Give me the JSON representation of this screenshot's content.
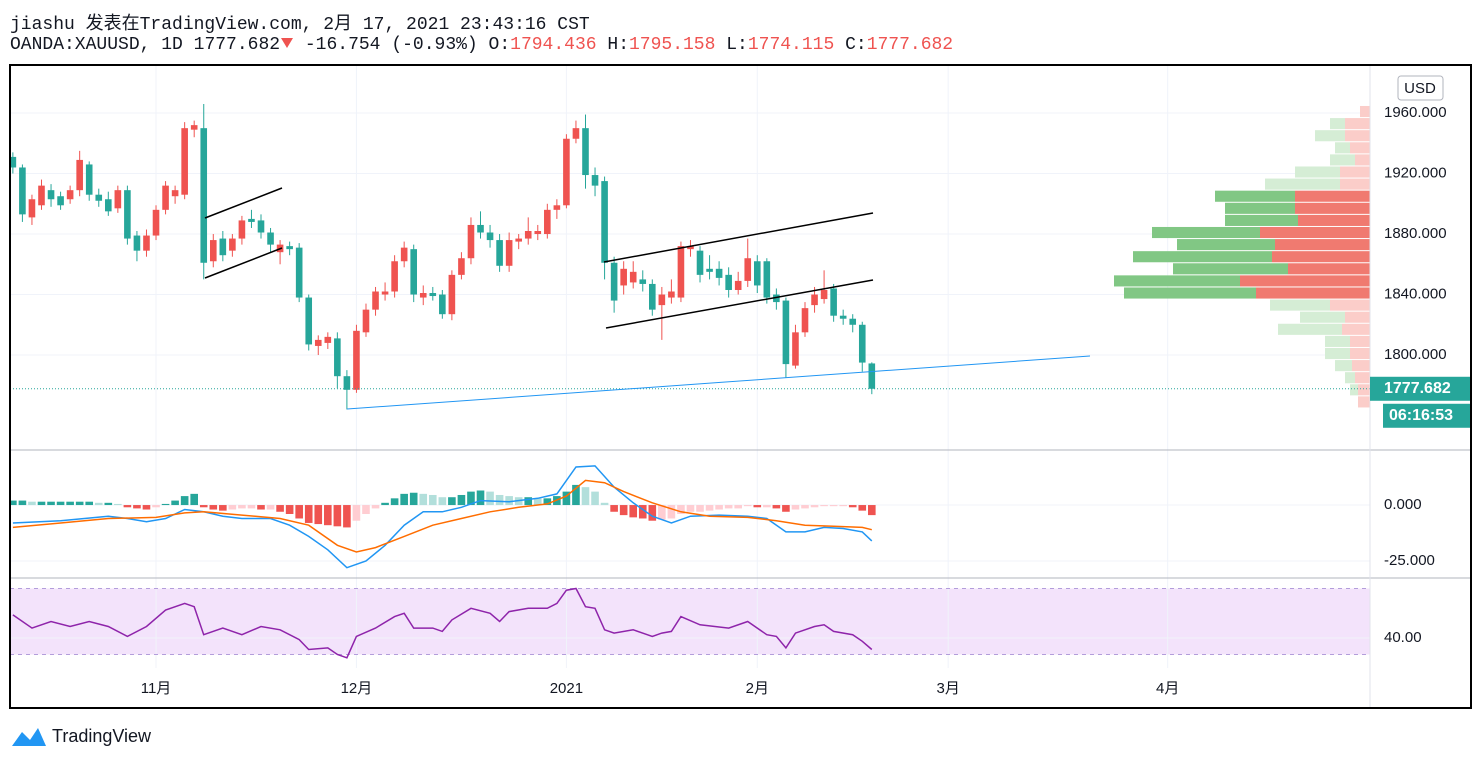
{
  "header": {
    "byline": "jiashu 发表在TradingView.com, 2月 17, 2021 23:43:16 CST",
    "symbol": "OANDA:XAUUSD, 1D",
    "change": "-16.754",
    "change_pct": "(-0.93%)",
    "o_label": "O:",
    "h_label": "H:",
    "l_label": "L:",
    "c_label": "C:"
  },
  "footer": {
    "brand": "TradingView"
  },
  "chart_data": {
    "type": "candlestick",
    "currency": "USD",
    "countdown": "06:16:53",
    "up_color": "#ef5350",
    "down_color": "#26a69a",
    "grid": true,
    "xlim": [
      -0.3,
      142.2
    ],
    "xticks": [
      {
        "value": 15,
        "label": "11月"
      },
      {
        "value": 36,
        "label": "12月"
      },
      {
        "value": 58,
        "label": "2021"
      },
      {
        "value": 78,
        "label": "2月"
      },
      {
        "value": 98,
        "label": "3月"
      },
      {
        "value": 121,
        "label": "4月"
      }
    ],
    "ylim": [
      1737.2,
      1991.1
    ],
    "yticks": [
      {
        "value": 1800,
        "label": "1800.000"
      },
      {
        "value": 1840,
        "label": "1840.000"
      },
      {
        "value": 1880,
        "label": "1880.000"
      },
      {
        "value": 1920,
        "label": "1920.000"
      },
      {
        "value": 1960,
        "label": "1960.000"
      }
    ],
    "open": [
      1931,
      1924,
      1891,
      1899,
      1909,
      1905,
      1903,
      1909,
      1926,
      1906,
      1903,
      1897,
      1909,
      1879,
      1869,
      1879,
      1896,
      1905,
      1906,
      1949,
      1950,
      1862,
      1877,
      1869,
      1877,
      1890,
      1889,
      1881,
      1868,
      1872,
      1871,
      1838,
      1806,
      1808,
      1811,
      1786,
      1777,
      1815,
      1830,
      1840,
      1842,
      1862,
      1870,
      1838,
      1841,
      1840,
      1827,
      1853,
      1864,
      1886,
      1881,
      1876,
      1859,
      1875,
      1877,
      1880,
      1880,
      1896,
      1899,
      1943,
      1950,
      1919,
      1915,
      1861,
      1846,
      1848,
      1850,
      1847,
      1833,
      1838,
      1838,
      1870,
      1869,
      1857,
      1857,
      1853,
      1843,
      1849,
      1862,
      1862,
      1840,
      1836,
      1793,
      1815,
      1833,
      1837,
      1844,
      1826,
      1824,
      1820,
      1794.436
    ],
    "high": [
      1934,
      1926,
      1906,
      1916,
      1913,
      1908,
      1912,
      1935,
      1928,
      1910,
      1908,
      1912,
      1912,
      1882,
      1883,
      1899,
      1915,
      1912,
      1954,
      1955,
      1966,
      1880,
      1882,
      1880,
      1892,
      1896,
      1893,
      1884,
      1876,
      1875,
      1874,
      1840,
      1813,
      1815,
      1815,
      1790,
      1820,
      1834,
      1845,
      1848,
      1866,
      1875,
      1873,
      1846,
      1845,
      1843,
      1856,
      1868,
      1891,
      1895,
      1886,
      1880,
      1881,
      1880,
      1891,
      1886,
      1900,
      1903,
      1946,
      1955,
      1959,
      1924,
      1918,
      1865,
      1862,
      1862,
      1856,
      1850,
      1845,
      1850,
      1875,
      1876,
      1872,
      1866,
      1862,
      1858,
      1855,
      1877,
      1866,
      1864,
      1844,
      1838,
      1820,
      1835,
      1845,
      1856,
      1847,
      1830,
      1827,
      1822,
      1795.158
    ],
    "low": [
      1920,
      1888,
      1886,
      1896,
      1898,
      1896,
      1900,
      1905,
      1902,
      1898,
      1892,
      1894,
      1873,
      1862,
      1865,
      1876,
      1893,
      1900,
      1903,
      1944,
      1850,
      1858,
      1862,
      1865,
      1873,
      1884,
      1877,
      1868,
      1860,
      1866,
      1835,
      1803,
      1800,
      1804,
      1778,
      1764,
      1775,
      1812,
      1826,
      1836,
      1838,
      1858,
      1835,
      1833,
      1836,
      1824,
      1823,
      1850,
      1860,
      1877,
      1871,
      1855,
      1855,
      1870,
      1873,
      1876,
      1877,
      1890,
      1897,
      1940,
      1910,
      1905,
      1850,
      1828,
      1840,
      1844,
      1842,
      1826,
      1810,
      1834,
      1835,
      1865,
      1848,
      1850,
      1846,
      1838,
      1840,
      1845,
      1841,
      1834,
      1830,
      1785,
      1791,
      1812,
      1828,
      1834,
      1822,
      1820,
      1815,
      1789,
      1774.115
    ],
    "close": [
      1924,
      1893,
      1903,
      1912,
      1903,
      1899,
      1909,
      1929,
      1906,
      1902,
      1895,
      1909,
      1877,
      1869,
      1879,
      1896,
      1912,
      1909,
      1950,
      1952,
      1861,
      1876,
      1866,
      1877,
      1889,
      1888,
      1881,
      1873,
      1873,
      1870,
      1838,
      1807,
      1810,
      1812,
      1786,
      1777,
      1816,
      1830,
      1842,
      1842,
      1862,
      1871,
      1840,
      1841,
      1839,
      1827,
      1853,
      1864,
      1886,
      1881,
      1876,
      1859,
      1876,
      1877,
      1882,
      1882,
      1896,
      1899,
      1943,
      1950,
      1919,
      1912,
      1861,
      1836,
      1857,
      1855,
      1847,
      1830,
      1840,
      1842,
      1872,
      1872,
      1853,
      1855,
      1851,
      1843,
      1849,
      1864,
      1846,
      1838,
      1835,
      1794,
      1815,
      1831,
      1840,
      1843,
      1826,
      1824,
      1820,
      1795,
      1777.682
    ],
    "volume_profile": {
      "bins": [
        1765,
        1773,
        1781,
        1789,
        1797,
        1805,
        1813,
        1821,
        1829,
        1837,
        1845,
        1853,
        1861,
        1869,
        1877,
        1885,
        1893,
        1901,
        1909,
        1917,
        1925,
        1933,
        1941,
        1949,
        1957,
        1965
      ],
      "down": [
        12,
        12,
        15,
        18,
        20,
        20,
        28,
        25,
        40,
        114,
        130,
        82,
        98,
        95,
        110,
        72,
        75,
        75,
        30,
        30,
        15,
        20,
        25,
        25,
        10
      ],
      "up": [
        0,
        8,
        10,
        17,
        25,
        25,
        64,
        45,
        60,
        132,
        126,
        115,
        139,
        98,
        108,
        73,
        70,
        80,
        75,
        45,
        25,
        15,
        30,
        15,
        0
      ],
      "value_area": [
        1837,
        1909
      ],
      "colors": {
        "up": "#81c784",
        "down": "#f07a70",
        "up_light": "#d5edd5",
        "down_light": "#fbcdc9"
      }
    },
    "macd": {
      "ylim": [
        -32.6,
        24.6
      ],
      "yticks": [
        {
          "value": 0,
          "label": "0.000"
        },
        {
          "value": -25,
          "label": "-25.000"
        }
      ],
      "histogram": [
        2,
        2,
        1.5,
        1.5,
        1.5,
        1.5,
        1.5,
        1.5,
        1.5,
        1,
        1,
        0.5,
        -1,
        -1.5,
        -2,
        -1,
        0.5,
        2,
        4,
        5,
        -1,
        -2,
        -2.5,
        -2,
        -1.5,
        -1.5,
        -2,
        -2,
        -3,
        -4,
        -6,
        -8,
        -8.5,
        -9,
        -9.5,
        -10,
        -7,
        -4,
        -1.5,
        1,
        3,
        5,
        5.5,
        5,
        4.5,
        3.5,
        3.5,
        4.5,
        6,
        6.5,
        6,
        4.5,
        4,
        3.5,
        3.5,
        3,
        3,
        4,
        6,
        9,
        8,
        6,
        1,
        -3,
        -4.5,
        -5.5,
        -6,
        -7,
        -6.5,
        -6,
        -4,
        -3,
        -3,
        -2.5,
        -2,
        -1.5,
        -1.5,
        -0.5,
        -1,
        -1,
        -1.5,
        -3,
        -2,
        -1.5,
        -1,
        -0.5,
        -0.5,
        -0.5,
        -1,
        -2.5,
        -4.5
      ],
      "histogram_colors": [
        "#26a69a",
        "#b2dfdb",
        "#ffcdd2",
        "#ef5350"
      ],
      "macd": {
        "color": "#2196f3",
        "x": [
          0,
          5,
          10,
          12,
          14,
          16,
          18,
          20,
          22,
          24,
          27,
          29,
          31,
          33,
          35,
          37,
          39,
          41,
          43,
          45,
          47,
          49,
          52,
          55,
          57,
          59,
          61,
          63,
          65,
          67,
          69,
          71,
          74,
          77,
          79,
          81,
          83,
          85,
          87,
          89,
          90
        ],
        "values": [
          -8,
          -7,
          -5,
          -6,
          -7.5,
          -6,
          -2,
          -3,
          -5,
          -6,
          -6,
          -9,
          -14,
          -20,
          -28,
          -25,
          -18,
          -9,
          -3,
          -3,
          -1,
          2,
          1.5,
          3,
          5,
          17,
          17.5,
          8,
          1,
          -5,
          -8,
          -5,
          -4.5,
          -5,
          -6,
          -12,
          -12,
          -10,
          -10.5,
          -12,
          -16
        ]
      },
      "signal": {
        "color": "#ff6d00",
        "x": [
          0,
          5,
          10,
          15,
          18,
          20,
          24,
          28,
          31,
          34,
          36,
          38,
          41,
          44,
          47,
          50,
          53,
          56,
          58,
          60,
          62,
          64,
          67,
          70,
          73,
          77,
          80,
          83,
          86,
          89,
          90
        ],
        "values": [
          -10,
          -8,
          -6,
          -5.5,
          -3.5,
          -3,
          -4.5,
          -6,
          -9,
          -18,
          -21,
          -19,
          -14,
          -9,
          -6,
          -3,
          -1,
          0.5,
          4,
          11,
          10,
          6,
          1,
          -3,
          -5,
          -5.5,
          -7,
          -9,
          -9.5,
          -10,
          -11
        ]
      }
    },
    "rsi": {
      "ylim": [
        21.8,
        76.4
      ],
      "yticks": [
        {
          "value": 40,
          "label": "40.00"
        }
      ],
      "band": [
        30,
        70
      ],
      "color": "#8e24aa",
      "band_color": "#f3e3fb",
      "x": [
        0,
        2,
        4,
        6,
        8,
        10,
        12,
        14,
        16,
        18,
        19,
        20,
        22,
        24,
        26,
        28,
        30,
        31,
        33,
        34,
        35,
        36,
        38,
        40,
        41,
        42,
        44,
        45,
        46,
        48,
        50,
        51,
        52,
        54,
        56,
        57,
        58,
        59,
        60,
        61,
        62,
        63,
        65,
        67,
        68,
        69,
        70,
        72,
        75,
        77,
        79,
        80,
        81,
        82,
        84,
        85,
        86,
        88,
        89,
        90
      ],
      "values": [
        54,
        46,
        50,
        47,
        50,
        47,
        41,
        47,
        57,
        61,
        59,
        42,
        46,
        42,
        47,
        45,
        39,
        33,
        34,
        30,
        28,
        41,
        46,
        53,
        55,
        46,
        46,
        44,
        51,
        58,
        55,
        50,
        56,
        58,
        58,
        61,
        69,
        70,
        59,
        58,
        45,
        43,
        45,
        41,
        43,
        44,
        53,
        48,
        46,
        50,
        42,
        41,
        34,
        43,
        47,
        48,
        44,
        42,
        38,
        33
      ]
    }
  }
}
